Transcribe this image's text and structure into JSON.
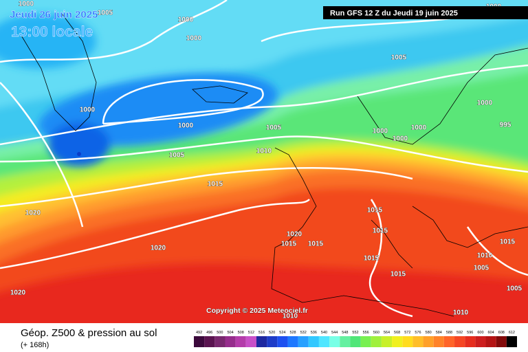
{
  "header": {
    "date": "Jeudi 26 juin 2025",
    "time": "13:00 locale",
    "run": "Run GFS 12 Z du Jeudi 19 juin 2025"
  },
  "copyright": "Copyright © 2025 Meteociel.fr",
  "footer": {
    "title": "Géop. Z500 & pression au sol",
    "subtitle": "(+ 168h)"
  },
  "isobar_labels": [
    1000,
    1005,
    1000,
    1000,
    1000,
    1000,
    1005,
    1005,
    1005,
    1010,
    1015,
    1020,
    1020,
    1020,
    1015,
    1015,
    1015,
    1015,
    1015,
    1015,
    1020,
    1000,
    995,
    1000,
    1000,
    1000,
    1015,
    1010,
    1005,
    1005,
    1010,
    1010,
    1000
  ],
  "colorbar_ticks": [
    492,
    496,
    500,
    504,
    508,
    512,
    516,
    520,
    524,
    528,
    532,
    536,
    540,
    544,
    548,
    552,
    556,
    560,
    564,
    568,
    572,
    576,
    580,
    584,
    588,
    592,
    596,
    600,
    604,
    608,
    612
  ]
}
